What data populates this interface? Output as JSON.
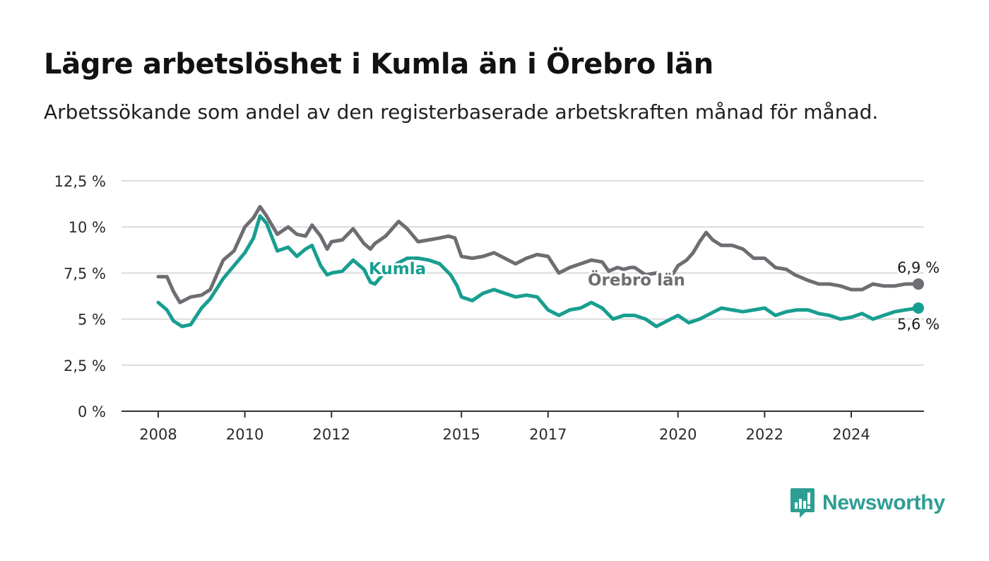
{
  "title": "Lägre arbetslöshet i Kumla än i Örebro län",
  "subtitle": "Arbetssökande som andel av den registerbaserade arbetskraften månad för månad.",
  "brand": {
    "name": "Newsworthy",
    "icon": "newsworthy-logo-icon",
    "color": "#2e9e93"
  },
  "chart_data": {
    "type": "line",
    "title": "Lägre arbetslöshet i Kumla än i Örebro län",
    "subtitle": "Arbetssökande som andel av den registerbaserade arbetskraften månad för månad.",
    "xlabel": "",
    "ylabel": "",
    "ylim": [
      0,
      12.5
    ],
    "xlim": [
      2007.2,
      2025.7
    ],
    "y_ticks": [
      0,
      2.5,
      5,
      7.5,
      10,
      12.5
    ],
    "y_tick_labels": [
      "0 %",
      "2,5 %",
      "5 %",
      "7,5 %",
      "10 %",
      "12,5 %"
    ],
    "x_ticks": [
      2008,
      2010,
      2012,
      2015,
      2017,
      2020,
      2022,
      2024
    ],
    "x_tick_labels": [
      "2008",
      "2010",
      "2012",
      "2015",
      "2017",
      "2020",
      "2022",
      "2024"
    ],
    "grid": "horizontal",
    "legend": "inline labels",
    "series": [
      {
        "name": "Örebro län",
        "color": "#6d6d72",
        "end_label": "6,9 %",
        "points": [
          [
            2008.0,
            7.3
          ],
          [
            2008.2,
            7.3
          ],
          [
            2008.35,
            6.5
          ],
          [
            2008.5,
            5.9
          ],
          [
            2008.75,
            6.2
          ],
          [
            2009.0,
            6.3
          ],
          [
            2009.2,
            6.6
          ],
          [
            2009.5,
            8.2
          ],
          [
            2009.75,
            8.7
          ],
          [
            2010.0,
            10.0
          ],
          [
            2010.2,
            10.5
          ],
          [
            2010.35,
            11.1
          ],
          [
            2010.5,
            10.6
          ],
          [
            2010.75,
            9.6
          ],
          [
            2011.0,
            10.0
          ],
          [
            2011.2,
            9.6
          ],
          [
            2011.4,
            9.5
          ],
          [
            2011.55,
            10.1
          ],
          [
            2011.75,
            9.5
          ],
          [
            2011.9,
            8.8
          ],
          [
            2012.0,
            9.2
          ],
          [
            2012.25,
            9.3
          ],
          [
            2012.5,
            9.9
          ],
          [
            2012.75,
            9.1
          ],
          [
            2012.9,
            8.8
          ],
          [
            2013.0,
            9.1
          ],
          [
            2013.25,
            9.5
          ],
          [
            2013.4,
            9.9
          ],
          [
            2013.55,
            10.3
          ],
          [
            2013.75,
            9.9
          ],
          [
            2014.0,
            9.2
          ],
          [
            2014.25,
            9.3
          ],
          [
            2014.5,
            9.4
          ],
          [
            2014.7,
            9.5
          ],
          [
            2014.85,
            9.4
          ],
          [
            2015.0,
            8.4
          ],
          [
            2015.25,
            8.3
          ],
          [
            2015.5,
            8.4
          ],
          [
            2015.75,
            8.6
          ],
          [
            2016.0,
            8.3
          ],
          [
            2016.25,
            8.0
          ],
          [
            2016.5,
            8.3
          ],
          [
            2016.75,
            8.5
          ],
          [
            2017.0,
            8.4
          ],
          [
            2017.25,
            7.5
          ],
          [
            2017.5,
            7.8
          ],
          [
            2017.75,
            8.0
          ],
          [
            2018.0,
            8.2
          ],
          [
            2018.25,
            8.1
          ],
          [
            2018.4,
            7.6
          ],
          [
            2018.6,
            7.8
          ],
          [
            2018.75,
            7.7
          ],
          [
            2018.9,
            7.8
          ],
          [
            2019.0,
            7.8
          ],
          [
            2019.25,
            7.4
          ],
          [
            2019.5,
            7.5
          ],
          [
            2019.75,
            7.2
          ],
          [
            2019.9,
            7.5
          ],
          [
            2020.0,
            7.9
          ],
          [
            2020.2,
            8.2
          ],
          [
            2020.35,
            8.6
          ],
          [
            2020.5,
            9.2
          ],
          [
            2020.65,
            9.7
          ],
          [
            2020.8,
            9.3
          ],
          [
            2021.0,
            9.0
          ],
          [
            2021.25,
            9.0
          ],
          [
            2021.5,
            8.8
          ],
          [
            2021.75,
            8.3
          ],
          [
            2022.0,
            8.3
          ],
          [
            2022.25,
            7.8
          ],
          [
            2022.5,
            7.7
          ],
          [
            2022.7,
            7.4
          ],
          [
            2022.9,
            7.2
          ],
          [
            2023.0,
            7.1
          ],
          [
            2023.25,
            6.9
          ],
          [
            2023.5,
            6.9
          ],
          [
            2023.75,
            6.8
          ],
          [
            2024.0,
            6.6
          ],
          [
            2024.25,
            6.6
          ],
          [
            2024.5,
            6.9
          ],
          [
            2024.75,
            6.8
          ],
          [
            2025.0,
            6.8
          ],
          [
            2025.25,
            6.9
          ],
          [
            2025.55,
            6.9
          ]
        ]
      },
      {
        "name": "Kumla",
        "color": "#189e90",
        "end_label": "5,6 %",
        "points": [
          [
            2008.0,
            5.9
          ],
          [
            2008.2,
            5.5
          ],
          [
            2008.35,
            4.9
          ],
          [
            2008.55,
            4.6
          ],
          [
            2008.75,
            4.7
          ],
          [
            2009.0,
            5.6
          ],
          [
            2009.2,
            6.1
          ],
          [
            2009.5,
            7.2
          ],
          [
            2009.75,
            7.9
          ],
          [
            2010.0,
            8.6
          ],
          [
            2010.2,
            9.4
          ],
          [
            2010.35,
            10.6
          ],
          [
            2010.5,
            10.2
          ],
          [
            2010.75,
            8.7
          ],
          [
            2011.0,
            8.9
          ],
          [
            2011.2,
            8.4
          ],
          [
            2011.4,
            8.8
          ],
          [
            2011.55,
            9.0
          ],
          [
            2011.75,
            7.9
          ],
          [
            2011.9,
            7.4
          ],
          [
            2012.0,
            7.5
          ],
          [
            2012.25,
            7.6
          ],
          [
            2012.5,
            8.2
          ],
          [
            2012.75,
            7.7
          ],
          [
            2012.9,
            7.0
          ],
          [
            2013.0,
            6.9
          ],
          [
            2013.25,
            7.6
          ],
          [
            2013.5,
            8.0
          ],
          [
            2013.75,
            8.3
          ],
          [
            2014.0,
            8.3
          ],
          [
            2014.25,
            8.2
          ],
          [
            2014.5,
            8.0
          ],
          [
            2014.75,
            7.4
          ],
          [
            2014.9,
            6.8
          ],
          [
            2015.0,
            6.2
          ],
          [
            2015.25,
            6.0
          ],
          [
            2015.5,
            6.4
          ],
          [
            2015.75,
            6.6
          ],
          [
            2016.0,
            6.4
          ],
          [
            2016.25,
            6.2
          ],
          [
            2016.5,
            6.3
          ],
          [
            2016.75,
            6.2
          ],
          [
            2017.0,
            5.5
          ],
          [
            2017.25,
            5.2
          ],
          [
            2017.5,
            5.5
          ],
          [
            2017.75,
            5.6
          ],
          [
            2018.0,
            5.9
          ],
          [
            2018.25,
            5.6
          ],
          [
            2018.5,
            5.0
          ],
          [
            2018.75,
            5.2
          ],
          [
            2019.0,
            5.2
          ],
          [
            2019.25,
            5.0
          ],
          [
            2019.5,
            4.6
          ],
          [
            2019.75,
            4.9
          ],
          [
            2020.0,
            5.2
          ],
          [
            2020.25,
            4.8
          ],
          [
            2020.5,
            5.0
          ],
          [
            2020.75,
            5.3
          ],
          [
            2021.0,
            5.6
          ],
          [
            2021.25,
            5.5
          ],
          [
            2021.5,
            5.4
          ],
          [
            2021.75,
            5.5
          ],
          [
            2022.0,
            5.6
          ],
          [
            2022.25,
            5.2
          ],
          [
            2022.5,
            5.4
          ],
          [
            2022.75,
            5.5
          ],
          [
            2023.0,
            5.5
          ],
          [
            2023.25,
            5.3
          ],
          [
            2023.5,
            5.2
          ],
          [
            2023.75,
            5.0
          ],
          [
            2024.0,
            5.1
          ],
          [
            2024.25,
            5.3
          ],
          [
            2024.5,
            5.0
          ],
          [
            2024.75,
            5.2
          ],
          [
            2025.0,
            5.4
          ],
          [
            2025.25,
            5.5
          ],
          [
            2025.55,
            5.6
          ]
        ]
      }
    ]
  }
}
